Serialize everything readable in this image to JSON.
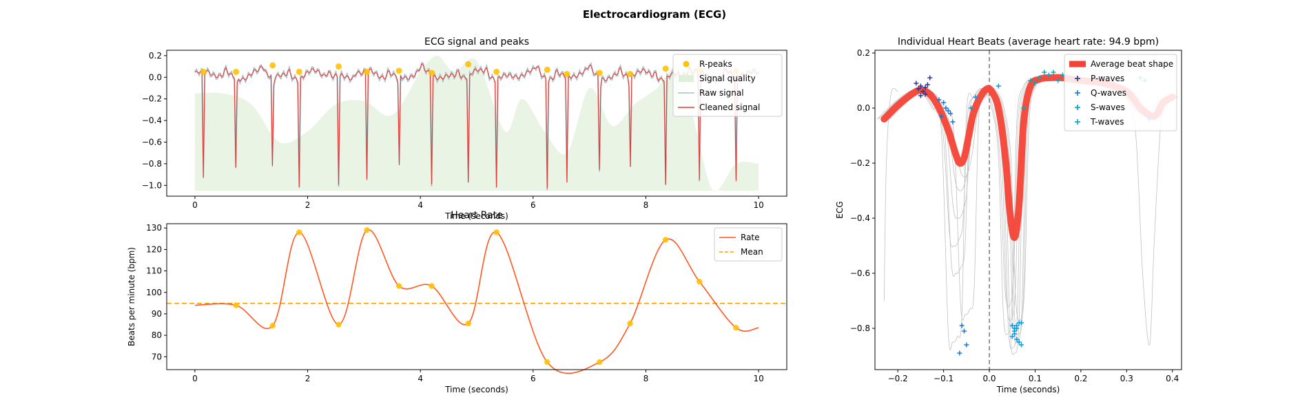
{
  "figure": {
    "suptitle": "Electrocardiogram (ECG)"
  },
  "chart_data": [
    {
      "type": "line",
      "title": "ECG signal and peaks",
      "xlabel": "Time (seconds)",
      "ylabel": "",
      "xlim": [
        -0.5,
        10.5
      ],
      "ylim": [
        -1.1,
        0.25
      ],
      "xticks": [
        "0",
        "2",
        "4",
        "6",
        "8",
        "10"
      ],
      "yticks": [
        "0.2",
        "0.0",
        "−0.2",
        "−0.4",
        "−0.6",
        "−0.8",
        "−1.0"
      ],
      "grid": false,
      "legend": {
        "position": "top-right",
        "entries": [
          "R-peaks",
          "Signal quality",
          "Raw signal",
          "Cleaned signal"
        ]
      },
      "colors": {
        "rpeaks": "#FFC107",
        "quality": "#DFF0D8",
        "raw": "#B0BEC5",
        "cleaned": "#E53935"
      },
      "rpeaks": {
        "x": [
          0.15,
          0.73,
          1.38,
          1.85,
          2.55,
          3.05,
          3.62,
          4.2,
          4.85,
          5.35,
          6.25,
          6.6,
          7.18,
          7.72,
          8.35,
          8.95,
          9.6
        ],
        "y": [
          0.05,
          0.05,
          0.11,
          0.05,
          0.1,
          0.05,
          0.06,
          0.04,
          0.12,
          0.05,
          0.07,
          0.03,
          0.04,
          0.03,
          0.08,
          0.07,
          0.06
        ]
      },
      "signal_quality": {
        "x": [
          0,
          0.5,
          1.0,
          1.5,
          2.0,
          2.5,
          3.0,
          3.5,
          4.0,
          4.3,
          4.6,
          5.0,
          5.5,
          5.8,
          6.2,
          6.6,
          7.0,
          7.4,
          7.8,
          8.2,
          8.6,
          8.9,
          9.2,
          9.6,
          10.0
        ],
        "y": [
          -0.15,
          -0.15,
          -0.25,
          -0.6,
          -0.5,
          -0.25,
          -0.22,
          -0.35,
          0.05,
          0.2,
          0.05,
          0.15,
          -0.5,
          -0.2,
          -0.5,
          -0.7,
          -0.1,
          -0.45,
          -0.25,
          -0.1,
          0.1,
          -0.5,
          -1.05,
          -0.8,
          -0.8
        ]
      }
    },
    {
      "type": "line",
      "title": "Heart Rate",
      "xlabel": "Time (seconds)",
      "ylabel": "Beats per minute (bpm)",
      "xlim": [
        -0.5,
        10.5
      ],
      "ylim": [
        64,
        132
      ],
      "xticks": [
        "0",
        "2",
        "4",
        "6",
        "8",
        "10"
      ],
      "yticks": [
        "70",
        "80",
        "90",
        "100",
        "110",
        "120",
        "130"
      ],
      "grid": false,
      "legend": {
        "position": "top-right",
        "entries": [
          "Rate",
          "Mean"
        ]
      },
      "colors": {
        "rate": "#FF5722",
        "mean": "#FFA000",
        "points": "#FFC107"
      },
      "mean": 94.9,
      "rate": {
        "x": [
          0.73,
          1.38,
          1.85,
          2.55,
          3.05,
          3.62,
          4.2,
          4.85,
          5.35,
          6.25,
          7.18,
          7.72,
          8.35,
          8.95,
          9.6
        ],
        "y": [
          94,
          84.5,
          128,
          85,
          129,
          103,
          103,
          85.5,
          128,
          67.5,
          67.5,
          85.5,
          124.5,
          105,
          83.5
        ]
      },
      "rate_start": [
        0,
        94
      ],
      "rate_end": [
        10,
        83.5
      ]
    },
    {
      "type": "line",
      "title": "Individual Heart Beats (average heart rate: 94.9 bpm)",
      "xlabel": "Time (seconds)",
      "ylabel": "ECG",
      "xlim": [
        -0.25,
        0.42
      ],
      "ylim": [
        -0.95,
        0.21
      ],
      "xticks": [
        "−0.2",
        "−0.1",
        "0.0",
        "0.1",
        "0.2",
        "0.3",
        "0.4"
      ],
      "yticks": [
        "0.2",
        "0.0",
        "−0.2",
        "−0.4",
        "−0.6",
        "−0.8"
      ],
      "grid": false,
      "legend": {
        "position": "top-right",
        "entries": [
          "Average beat shape",
          "P-waves",
          "Q-waves",
          "S-waves",
          "T-waves"
        ]
      },
      "colors": {
        "average": "#F44336",
        "pwave": "#283593",
        "qwave": "#1976D2",
        "swave": "#039BE5",
        "twave": "#00ACC1",
        "beats": "#C0C0C0"
      },
      "average_beat": {
        "x": [
          -0.23,
          -0.2,
          -0.17,
          -0.15,
          -0.13,
          -0.11,
          -0.09,
          -0.075,
          -0.065,
          -0.055,
          -0.045,
          -0.035,
          -0.02,
          -0.005,
          0.005,
          0.02,
          0.035,
          0.045,
          0.055,
          0.065,
          0.075,
          0.09,
          0.11,
          0.13,
          0.16,
          0.2,
          0.25,
          0.3,
          0.33,
          0.36,
          0.38,
          0.4
        ],
        "y": [
          -0.04,
          0.01,
          0.05,
          0.065,
          0.05,
          0.0,
          -0.08,
          -0.16,
          -0.2,
          -0.18,
          -0.1,
          -0.02,
          0.04,
          0.07,
          0.06,
          0.0,
          -0.18,
          -0.38,
          -0.47,
          -0.35,
          -0.05,
          0.08,
          0.105,
          0.11,
          0.11,
          0.1,
          0.09,
          0.06,
          0.0,
          -0.03,
          0.02,
          0.04
        ]
      },
      "p_waves": {
        "x": [
          -0.16,
          -0.15,
          -0.14,
          -0.155,
          -0.145,
          -0.13,
          -0.135,
          -0.14,
          -0.15
        ],
        "y": [
          0.09,
          0.08,
          0.075,
          0.07,
          0.06,
          0.11,
          0.085,
          0.05,
          0.045
        ]
      },
      "q_waves": {
        "x": [
          -0.1,
          -0.095,
          -0.09,
          -0.085,
          -0.105,
          -0.08,
          -0.11,
          -0.06,
          -0.055,
          -0.065,
          -0.05
        ],
        "y": [
          0.02,
          0.0,
          -0.01,
          -0.02,
          -0.03,
          -0.05,
          0.03,
          -0.79,
          -0.81,
          -0.89,
          -0.86
        ]
      },
      "s_waves": {
        "x": [
          -0.04,
          0.05,
          0.055,
          0.06,
          0.065,
          0.07,
          0.055,
          0.06,
          0.05,
          0.065,
          0.07,
          0.06,
          0.055,
          -0.03,
          0.02
        ],
        "y": [
          0.0,
          -0.79,
          -0.8,
          -0.79,
          -0.78,
          -0.78,
          -0.82,
          -0.84,
          -0.83,
          -0.85,
          -0.86,
          -0.8,
          -0.81,
          0.04,
          0.08
        ]
      },
      "t_waves": {
        "x": [
          0.09,
          0.1,
          0.11,
          0.12,
          0.13,
          0.14,
          0.15,
          0.16,
          0.33,
          0.34,
          0.35,
          0.075
        ],
        "y": [
          0.1,
          0.09,
          0.11,
          0.13,
          0.12,
          0.13,
          0.1,
          0.12,
          0.11,
          0.1,
          -0.04,
          0.0
        ]
      }
    }
  ]
}
